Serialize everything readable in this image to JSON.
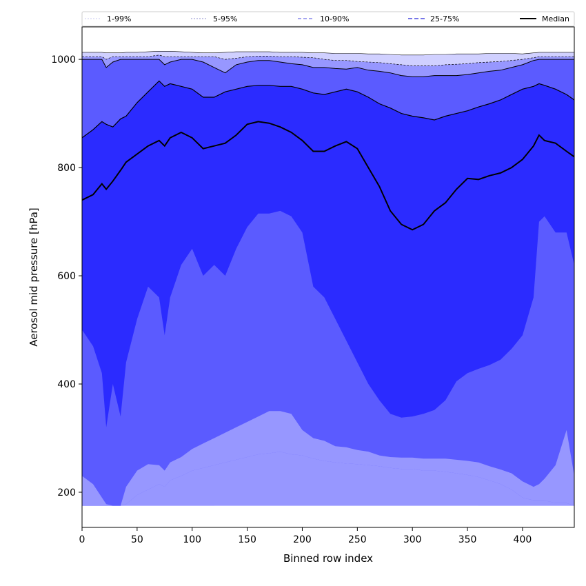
{
  "chart_data": {
    "type": "area",
    "title": "",
    "xlabel": "Binned row index",
    "ylabel": "Aerosol mid pressure [hPa]",
    "xlim": [
      0,
      447
    ],
    "ylim": [
      135,
      1060
    ],
    "xticks": [
      0,
      50,
      100,
      150,
      200,
      250,
      300,
      350,
      400
    ],
    "yticks": [
      200,
      400,
      600,
      800,
      1000
    ],
    "floor": 175,
    "legend_position": "top",
    "colors": {
      "band_1_99": "#d0d0ff",
      "band_5_95": "#9797ff",
      "band_10_90": "#5b5bff",
      "band_25_75": "#2b2bff",
      "line_1_99": "#c8c8f0",
      "line_5_95": "#8c8ccc",
      "line_10_90": "#6f6fe6",
      "line_25_75": "#4a4ae0",
      "median": "#000000"
    },
    "legend": [
      {
        "label": "1-99%",
        "style": "dotted-light"
      },
      {
        "label": "5-95%",
        "style": "dotted"
      },
      {
        "label": "10-90%",
        "style": "dashed"
      },
      {
        "label": "25-75%",
        "style": "dashed-bold"
      },
      {
        "label": "Median",
        "style": "solid"
      }
    ],
    "x": [
      0,
      10,
      18,
      22,
      28,
      35,
      40,
      50,
      60,
      70,
      75,
      80,
      90,
      100,
      110,
      120,
      130,
      140,
      150,
      160,
      170,
      180,
      190,
      200,
      210,
      220,
      230,
      240,
      250,
      260,
      270,
      280,
      290,
      300,
      310,
      320,
      330,
      340,
      350,
      360,
      370,
      380,
      390,
      400,
      410,
      415,
      420,
      430,
      440,
      447
    ],
    "series": [
      {
        "name": "p1",
        "values": [
          175,
          175,
          175,
          175,
          175,
          175,
          175,
          175,
          175,
          175,
          175,
          175,
          175,
          175,
          175,
          175,
          180,
          185,
          190,
          195,
          195,
          200,
          195,
          205,
          215,
          210,
          205,
          210,
          205,
          195,
          190,
          185,
          180,
          178,
          182,
          185,
          185,
          180,
          180,
          175,
          175,
          175,
          175,
          175,
          175,
          175,
          175,
          175,
          175,
          175
        ]
      },
      {
        "name": "p5",
        "values": [
          175,
          175,
          175,
          175,
          175,
          175,
          175,
          175,
          175,
          175,
          175,
          175,
          175,
          175,
          175,
          175,
          175,
          175,
          175,
          175,
          175,
          175,
          175,
          175,
          175,
          175,
          175,
          175,
          175,
          175,
          175,
          175,
          175,
          175,
          175,
          175,
          175,
          175,
          175,
          175,
          175,
          175,
          175,
          175,
          175,
          175,
          175,
          175,
          175,
          175
        ]
      },
      {
        "name": "p10",
        "values": [
          175,
          175,
          175,
          175,
          175,
          175,
          178,
          195,
          205,
          215,
          210,
          222,
          230,
          240,
          245,
          250,
          255,
          260,
          265,
          270,
          272,
          275,
          270,
          268,
          262,
          258,
          255,
          253,
          252,
          250,
          248,
          245,
          243,
          243,
          240,
          240,
          238,
          235,
          232,
          228,
          222,
          215,
          205,
          190,
          185,
          185,
          185,
          180,
          180,
          175
        ]
      },
      {
        "name": "p25",
        "values": [
          230,
          215,
          190,
          178,
          175,
          175,
          210,
          240,
          252,
          250,
          240,
          255,
          265,
          280,
          290,
          300,
          310,
          320,
          330,
          340,
          350,
          350,
          345,
          315,
          300,
          295,
          285,
          283,
          278,
          275,
          268,
          265,
          264,
          264,
          262,
          262,
          262,
          260,
          258,
          255,
          248,
          242,
          235,
          220,
          210,
          215,
          225,
          250,
          315,
          230
        ]
      },
      {
        "name": "p75",
        "values": [
          855,
          870,
          885,
          880,
          875,
          890,
          895,
          920,
          940,
          960,
          950,
          955,
          950,
          945,
          930,
          930,
          940,
          945,
          950,
          952,
          952,
          950,
          950,
          945,
          938,
          935,
          940,
          945,
          940,
          930,
          918,
          910,
          900,
          895,
          892,
          888,
          895,
          900,
          905,
          912,
          918,
          925,
          935,
          945,
          950,
          955,
          952,
          945,
          935,
          925
        ]
      },
      {
        "name": "p90",
        "values": [
          1000,
          1000,
          1000,
          985,
          995,
          1000,
          1000,
          1000,
          1000,
          1000,
          990,
          995,
          1000,
          1000,
          995,
          985,
          975,
          990,
          995,
          998,
          998,
          995,
          992,
          990,
          985,
          985,
          983,
          982,
          985,
          980,
          978,
          975,
          970,
          968,
          968,
          970,
          970,
          970,
          972,
          975,
          978,
          980,
          985,
          990,
          998,
          1000,
          1000,
          1000,
          1000,
          1000
        ]
      },
      {
        "name": "p95",
        "values": [
          1005,
          1005,
          1005,
          1000,
          1005,
          1005,
          1005,
          1005,
          1005,
          1008,
          1005,
          1005,
          1005,
          1005,
          1005,
          1005,
          1000,
          1002,
          1005,
          1006,
          1006,
          1005,
          1005,
          1004,
          1003,
          1000,
          998,
          998,
          996,
          995,
          994,
          992,
          990,
          988,
          988,
          988,
          990,
          991,
          992,
          994,
          995,
          996,
          998,
          1000,
          1003,
          1005,
          1005,
          1005,
          1005,
          1005
        ]
      },
      {
        "name": "p99",
        "values": [
          1013,
          1013,
          1013,
          1012,
          1012,
          1012,
          1013,
          1013,
          1014,
          1015,
          1015,
          1015,
          1014,
          1013,
          1012,
          1012,
          1013,
          1014,
          1014,
          1014,
          1014,
          1013,
          1013,
          1013,
          1012,
          1012,
          1011,
          1011,
          1011,
          1010,
          1010,
          1009,
          1008,
          1008,
          1008,
          1009,
          1009,
          1010,
          1010,
          1010,
          1011,
          1011,
          1011,
          1010,
          1012,
          1013,
          1013,
          1013,
          1013,
          1013
        ]
      },
      {
        "name": "p90_lower",
        "values": [
          500,
          470,
          420,
          320,
          400,
          340,
          440,
          520,
          580,
          560,
          490,
          560,
          620,
          650,
          600,
          620,
          600,
          650,
          690,
          715,
          715,
          720,
          710,
          680,
          580,
          560,
          520,
          480,
          440,
          400,
          370,
          345,
          338,
          340,
          345,
          352,
          370,
          405,
          420,
          428,
          435,
          445,
          465,
          490,
          560,
          700,
          710,
          680,
          680,
          620
        ]
      },
      {
        "name": "median",
        "values": [
          740,
          750,
          770,
          760,
          775,
          795,
          810,
          825,
          840,
          850,
          840,
          855,
          865,
          855,
          835,
          840,
          845,
          860,
          880,
          885,
          882,
          875,
          865,
          850,
          830,
          830,
          840,
          848,
          835,
          800,
          765,
          720,
          695,
          685,
          695,
          720,
          735,
          760,
          780,
          778,
          785,
          790,
          800,
          815,
          840,
          860,
          850,
          845,
          830,
          820
        ]
      }
    ]
  }
}
